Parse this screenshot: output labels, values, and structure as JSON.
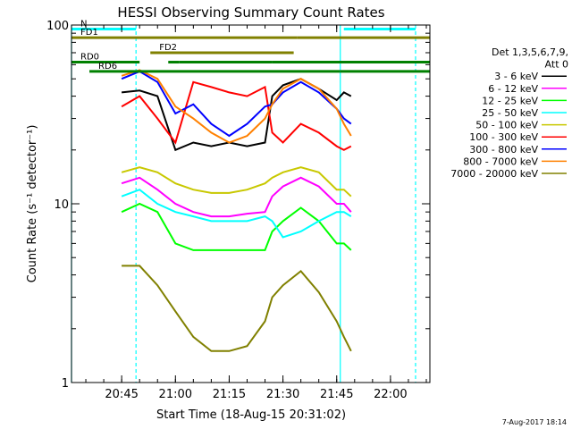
{
  "chart_data": {
    "type": "line",
    "title": "HESSI Observing Summary Count Rates",
    "xlabel": "Start Time (18-Aug-15 20:31:02)",
    "ylabel": "Count Rate (s⁻¹ detector⁻¹)",
    "footer": "7-Aug-2017 18:14",
    "xlim": [
      "20:31",
      "22:11"
    ],
    "ylim": [
      1,
      100
    ],
    "yscale": "log",
    "x_ticks": [
      "20:45",
      "21:00",
      "21:15",
      "21:30",
      "21:45",
      "22:00"
    ],
    "y_ticks": [
      "1",
      "10",
      "100"
    ],
    "legend": {
      "header": [
        "Det 1,3,5,6,7,9,",
        "Att 0"
      ],
      "placement": "right"
    },
    "series": [
      {
        "name": "3 - 6 keV",
        "color": "#000000",
        "x": [
          "20:45",
          "20:50",
          "20:55",
          "21:00",
          "21:05",
          "21:10",
          "21:15",
          "21:20",
          "21:25",
          "21:27",
          "21:30",
          "21:35",
          "21:40",
          "21:45",
          "21:47",
          "21:49"
        ],
        "y": [
          42,
          43,
          40,
          20,
          22,
          21,
          22,
          21,
          22,
          40,
          46,
          50,
          44,
          38,
          42,
          40
        ]
      },
      {
        "name": "6 - 12 keV",
        "color": "#ff00ff",
        "x": [
          "20:45",
          "20:50",
          "20:55",
          "21:00",
          "21:05",
          "21:10",
          "21:15",
          "21:20",
          "21:25",
          "21:27",
          "21:30",
          "21:35",
          "21:40",
          "21:45",
          "21:47",
          "21:49"
        ],
        "y": [
          13,
          14,
          12,
          10,
          9,
          8.5,
          8.5,
          8.8,
          9,
          11,
          12.5,
          14,
          12.5,
          10,
          10,
          9
        ]
      },
      {
        "name": "12 - 25 keV",
        "color": "#00ff00",
        "x": [
          "20:45",
          "20:50",
          "20:55",
          "21:00",
          "21:05",
          "21:10",
          "21:15",
          "21:20",
          "21:25",
          "21:27",
          "21:30",
          "21:35",
          "21:40",
          "21:45",
          "21:47",
          "21:49"
        ],
        "y": [
          9,
          10,
          9,
          6,
          5.5,
          5.5,
          5.5,
          5.5,
          5.5,
          7,
          8,
          9.5,
          8,
          6,
          6,
          5.5
        ]
      },
      {
        "name": "25 - 50 keV",
        "color": "#00ffff",
        "x": [
          "20:45",
          "20:50",
          "20:55",
          "21:00",
          "21:05",
          "21:10",
          "21:15",
          "21:20",
          "21:25",
          "21:27",
          "21:30",
          "21:35",
          "21:40",
          "21:45",
          "21:47",
          "21:49"
        ],
        "y": [
          11,
          12,
          10,
          9,
          8.5,
          8,
          8,
          8,
          8.5,
          8,
          6.5,
          7,
          8,
          9,
          9,
          8.5
        ]
      },
      {
        "name": "50 - 100 keV",
        "color": "#c8c800",
        "x": [
          "20:45",
          "20:50",
          "20:55",
          "21:00",
          "21:05",
          "21:10",
          "21:15",
          "21:20",
          "21:25",
          "21:27",
          "21:30",
          "21:35",
          "21:40",
          "21:45",
          "21:47",
          "21:49"
        ],
        "y": [
          15,
          16,
          15,
          13,
          12,
          11.5,
          11.5,
          12,
          13,
          14,
          15,
          16,
          15,
          12,
          12,
          11
        ]
      },
      {
        "name": "100 - 300 keV",
        "color": "#ff0000",
        "x": [
          "20:45",
          "20:50",
          "20:55",
          "21:00",
          "21:05",
          "21:10",
          "21:15",
          "21:20",
          "21:25",
          "21:27",
          "21:30",
          "21:35",
          "21:40",
          "21:45",
          "21:47",
          "21:49"
        ],
        "y": [
          35,
          40,
          30,
          22,
          48,
          45,
          42,
          40,
          45,
          25,
          22,
          28,
          25,
          21,
          20,
          21
        ]
      },
      {
        "name": "300 - 800 keV",
        "color": "#0000ff",
        "x": [
          "20:45",
          "20:50",
          "20:55",
          "21:00",
          "21:05",
          "21:10",
          "21:15",
          "21:20",
          "21:25",
          "21:27",
          "21:30",
          "21:35",
          "21:40",
          "21:45",
          "21:47",
          "21:49"
        ],
        "y": [
          50,
          55,
          48,
          32,
          36,
          28,
          24,
          28,
          35,
          36,
          42,
          48,
          42,
          34,
          30,
          28
        ]
      },
      {
        "name": "800 - 7000 keV",
        "color": "#ff8000",
        "x": [
          "20:45",
          "20:50",
          "20:55",
          "21:00",
          "21:05",
          "21:10",
          "21:15",
          "21:20",
          "21:25",
          "21:27",
          "21:30",
          "21:35",
          "21:40",
          "21:45",
          "21:47",
          "21:49"
        ],
        "y": [
          52,
          56,
          50,
          35,
          30,
          25,
          22,
          24,
          30,
          36,
          44,
          50,
          44,
          34,
          28,
          24
        ]
      },
      {
        "name": "7000 - 20000 keV",
        "color": "#808000",
        "x": [
          "20:45",
          "20:50",
          "20:55",
          "21:00",
          "21:05",
          "21:10",
          "21:15",
          "21:20",
          "21:25",
          "21:27",
          "21:30",
          "21:35",
          "21:40",
          "21:45",
          "21:47",
          "21:49"
        ],
        "y": [
          4.5,
          4.5,
          3.5,
          2.5,
          1.8,
          1.5,
          1.5,
          1.6,
          2.2,
          3,
          3.5,
          4.2,
          3.2,
          2.2,
          1.8,
          1.5
        ]
      }
    ],
    "state_bars": [
      {
        "label": "N",
        "color": "#00ffff",
        "y": 95,
        "segments": [
          [
            "20:31",
            "20:49"
          ],
          [
            "21:47",
            "22:07"
          ]
        ]
      },
      {
        "label": "FD1",
        "color": "#808000",
        "y": 85,
        "segments": [
          [
            "20:31",
            "21:34"
          ],
          [
            "21:34",
            "22:11"
          ]
        ]
      },
      {
        "label": "FD2",
        "color": "#808000",
        "y": 70,
        "segments": [
          [
            "20:53",
            "21:33"
          ]
        ]
      },
      {
        "label": "RD0",
        "color": "#008000",
        "y": 62,
        "segments": [
          [
            "20:31",
            "20:50"
          ],
          [
            "20:58",
            "21:01"
          ],
          [
            "21:01",
            "21:27"
          ],
          [
            "21:27",
            "22:11"
          ]
        ]
      },
      {
        "label": "RD6",
        "color": "#008000",
        "y": 55,
        "segments": [
          [
            "20:36",
            "21:46"
          ],
          [
            "21:46",
            "22:11"
          ]
        ]
      }
    ],
    "vertical_markers": [
      {
        "x": "20:31",
        "color": "#00ffff",
        "style": "solid"
      },
      {
        "x": "20:49",
        "color": "#00ffff",
        "style": "dashed"
      },
      {
        "x": "21:46",
        "color": "#00ffff",
        "style": "solid"
      },
      {
        "x": "22:07",
        "color": "#00ffff",
        "style": "dashed"
      }
    ]
  }
}
